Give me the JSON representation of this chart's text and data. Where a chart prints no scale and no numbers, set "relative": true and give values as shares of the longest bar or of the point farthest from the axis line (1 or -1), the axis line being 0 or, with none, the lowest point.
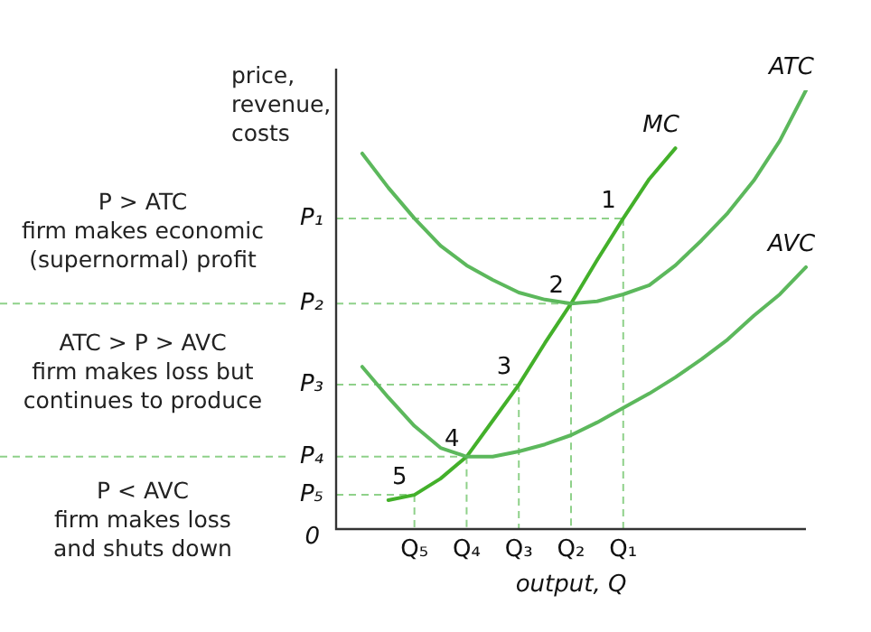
{
  "chart_data": {
    "type": "line",
    "relative": true,
    "ylabel": "price,\nrevenue,\ncosts",
    "xlabel": "output, Q",
    "marker": "none",
    "line_style": "solid",
    "grid": false,
    "legend": false,
    "categories": [
      null,
      null,
      null,
      "Q₅",
      null,
      "Q₄",
      null,
      "Q₃",
      null,
      "Q₂",
      null,
      "Q₁",
      null,
      null,
      null,
      null,
      null,
      null,
      null
    ],
    "series": [
      {
        "name": "ATC",
        "color": "#5cb85c",
        "values": [
          null,
          0.856,
          0.778,
          0.708,
          0.646,
          0.601,
          0.568,
          0.539,
          0.523,
          0.514,
          0.519,
          0.535,
          0.556,
          0.601,
          0.658,
          0.72,
          0.794,
          0.885,
          1.0
        ]
      },
      {
        "name": "AVC",
        "color": "#5cb85c",
        "values": [
          null,
          0.37,
          0.3,
          0.235,
          0.185,
          0.165,
          0.165,
          0.177,
          0.193,
          0.214,
          0.243,
          0.276,
          0.309,
          0.346,
          0.387,
          0.432,
          0.486,
          0.535,
          0.597
        ]
      },
      {
        "name": "MC",
        "color": "#43b02a",
        "values": [
          null,
          null,
          0.066,
          0.078,
          0.115,
          0.165,
          0.247,
          0.329,
          0.424,
          0.514,
          0.613,
          0.708,
          0.798,
          0.868,
          null,
          null,
          null,
          null,
          null
        ]
      }
    ],
    "annotations": [
      {
        "text": "1",
        "x": "Q₁",
        "y": 0.708
      },
      {
        "text": "2",
        "x": "Q₂",
        "y": 0.514
      },
      {
        "text": "3",
        "x": "Q₃",
        "y": 0.329
      },
      {
        "text": "4",
        "x": "Q₄",
        "y": 0.165
      },
      {
        "text": "5",
        "x": "Q₅",
        "y": 0.078
      },
      "P₁",
      "P₂",
      "P₃",
      "P₄",
      "P₅",
      "0",
      "P > ATC\nfirm makes economic\n(supernormal) profit",
      "ATC > P > AVC\nfirm makes loss but\ncontinues to produce",
      "P < AVC\nfirm makes loss\nand shuts down"
    ]
  }
}
